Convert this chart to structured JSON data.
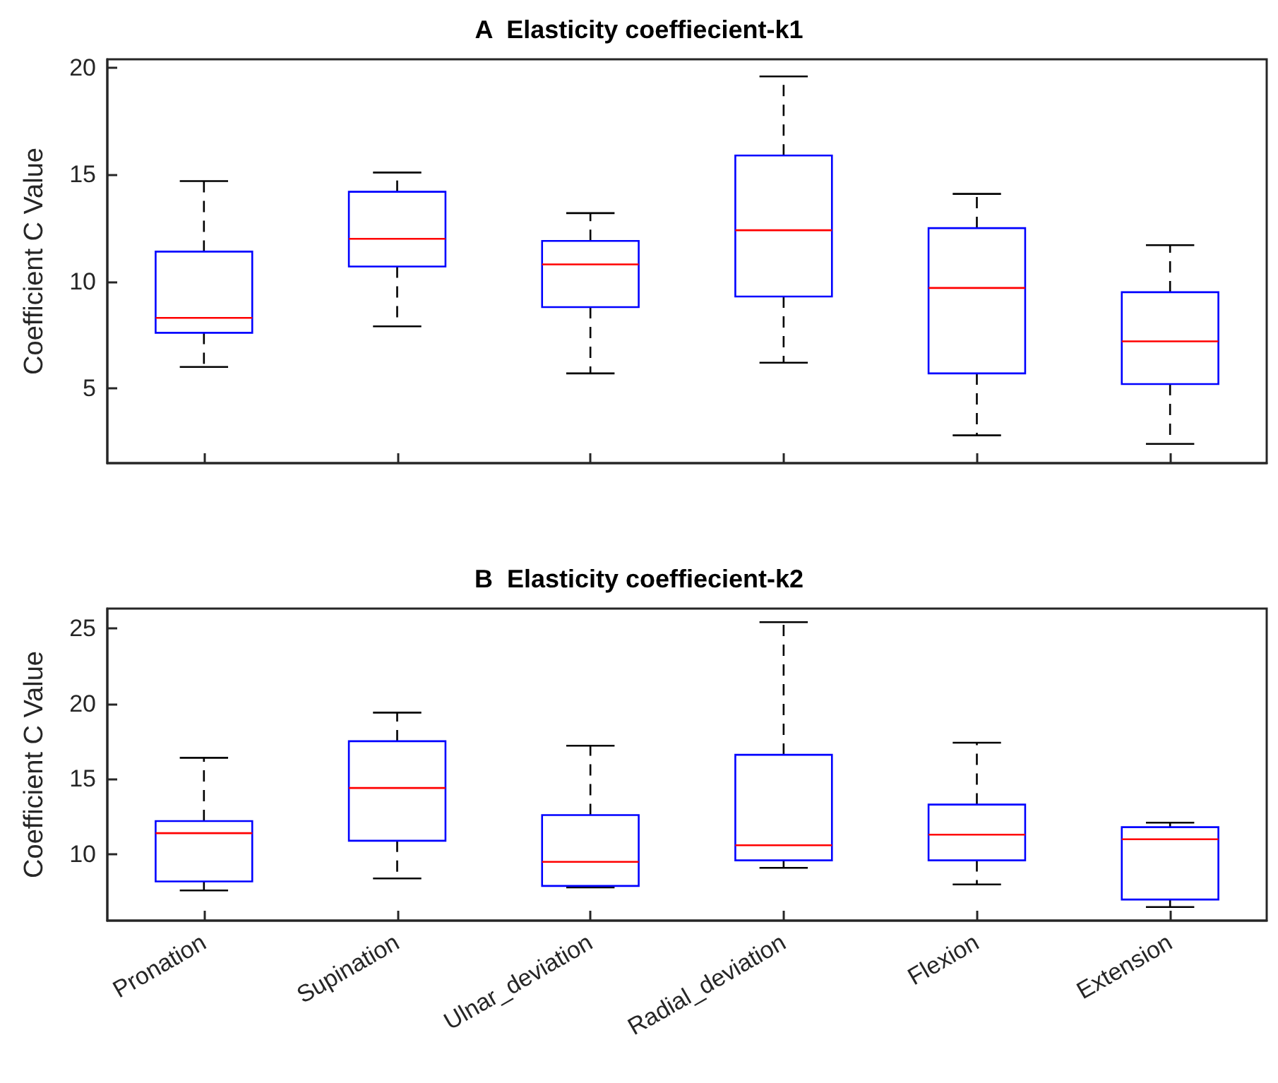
{
  "chart_data": [
    {
      "type": "box",
      "title": "A  Elasticity coeffiecient-k1",
      "ylabel": "Coefficient C Value",
      "categories": [
        null,
        null,
        null,
        null,
        null,
        null
      ],
      "tick_labels": "y",
      "ylim": [
        1.5,
        20.4
      ],
      "yticks": [
        5,
        10,
        15,
        20
      ],
      "grid": false,
      "line_style": "dashed",
      "series": [
        {
          "color": "#0000ff",
          "boxes": [
            {
              "low": 6.0,
              "q1": 7.6,
              "median": 8.3,
              "q3": 11.4,
              "high": 14.7
            },
            {
              "low": 7.9,
              "q1": 10.7,
              "median": 12.0,
              "q3": 14.2,
              "high": 15.1
            },
            {
              "low": 5.7,
              "q1": 8.8,
              "median": 10.8,
              "q3": 11.9,
              "high": 13.2
            },
            {
              "low": 6.2,
              "q1": 9.3,
              "median": 12.4,
              "q3": 15.9,
              "high": 19.6
            },
            {
              "low": 2.8,
              "q1": 5.7,
              "median": 9.7,
              "q3": 12.5,
              "high": 14.1
            },
            {
              "low": 2.4,
              "q1": 5.2,
              "median": 7.2,
              "q3": 9.5,
              "high": 11.7
            }
          ]
        }
      ]
    },
    {
      "type": "box",
      "title": "B  Elasticity coeffiecient-k2",
      "ylabel": "Coefficient C Value",
      "categories": [
        "Pronation",
        "Supination",
        "Ulnar_deviation",
        "Radial_deviation",
        "Flexion",
        "Extension"
      ],
      "ylim": [
        5.6,
        26.3
      ],
      "yticks": [
        10,
        15,
        20,
        25
      ],
      "grid": false,
      "line_style": "dashed",
      "series": [
        {
          "color": "#0000ff",
          "boxes": [
            {
              "low": 7.6,
              "q1": 8.2,
              "median": 11.4,
              "q3": 12.2,
              "high": 16.4
            },
            {
              "low": 8.4,
              "q1": 10.9,
              "median": 14.4,
              "q3": 17.5,
              "high": 19.4
            },
            {
              "low": 7.8,
              "q1": 7.9,
              "median": 9.5,
              "q3": 12.6,
              "high": 17.2
            },
            {
              "low": 9.1,
              "q1": 9.6,
              "median": 10.6,
              "q3": 16.6,
              "high": 25.4
            },
            {
              "low": 8.0,
              "q1": 9.6,
              "median": 11.3,
              "q3": 13.3,
              "high": 17.4
            },
            {
              "low": 6.5,
              "q1": 7.0,
              "median": 11.0,
              "q3": 11.8,
              "high": 12.1
            }
          ]
        }
      ]
    }
  ]
}
